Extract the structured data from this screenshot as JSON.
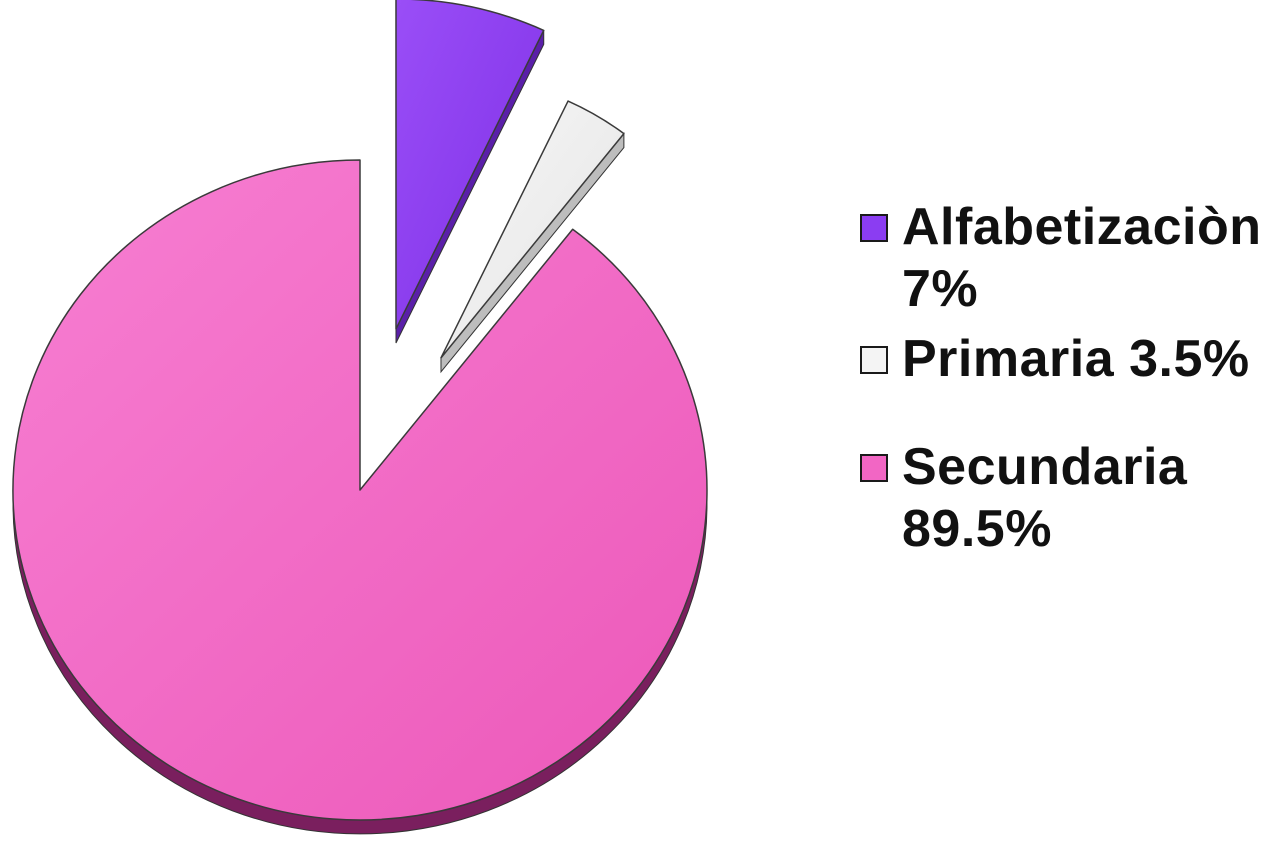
{
  "chart_data": {
    "type": "pie",
    "title": "",
    "slices": [
      {
        "label": "Alfabetizaciòn",
        "value": 7,
        "display": "7%",
        "color": "#8b3df2",
        "side_color": "#5a1fa8",
        "exploded": true
      },
      {
        "label": "Primaria",
        "value": 3.5,
        "display": "3.5%",
        "color": "#f0f0f0",
        "side_color": "#bdbdbd",
        "exploded": true
      },
      {
        "label": "Secundaria",
        "value": 89.5,
        "display": "89.5%",
        "color": "#f266c4",
        "side_color": "#7a1f5e",
        "exploded": false
      }
    ],
    "legend": {
      "position": "right",
      "entries": [
        "Alfabetizaciòn 7%",
        "Primaria 3.5%",
        "Secundaria 89.5%"
      ]
    }
  }
}
